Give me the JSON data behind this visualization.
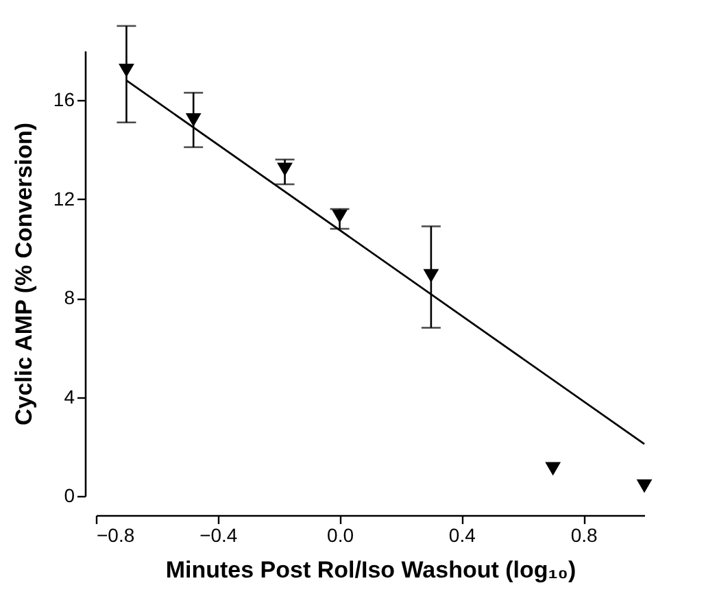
{
  "chart_data": {
    "type": "scatter",
    "xlabel": "Minutes Post Rol/Iso Washout (log₁₀)",
    "ylabel": "Cyclic AMP (% Conversion)",
    "xlim": [
      -0.8,
      1.0
    ],
    "xticks": [
      -0.8,
      -0.4,
      {
        "value": 0,
        "label": "0.0"
      },
      0.4,
      0.8
    ],
    "ylim": [
      0,
      18
    ],
    "yticks": [
      0,
      4,
      8,
      12,
      16
    ],
    "grid": false,
    "series": [
      {
        "color": "#000000",
        "marker": "triangle",
        "x": [
          -0.7,
          -0.48,
          -0.18,
          0,
          0.3,
          0.7,
          1.0
        ],
        "values": [
          17.2,
          15.2,
          13.2,
          11.3,
          8.9,
          1.1,
          0.4
        ],
        "errors": [
          [
            15.1,
            19.0
          ],
          [
            14.1,
            16.3
          ],
          [
            12.6,
            13.6
          ],
          [
            10.8,
            11.6
          ],
          [
            6.8,
            10.9
          ],
          null,
          null
        ]
      },
      {
        "type": "line",
        "color": "#000000",
        "x": [
          -0.7,
          1.0
        ],
        "values": [
          16.8,
          2.1
        ],
        "line_style": "solid",
        "marker": "none"
      }
    ]
  }
}
